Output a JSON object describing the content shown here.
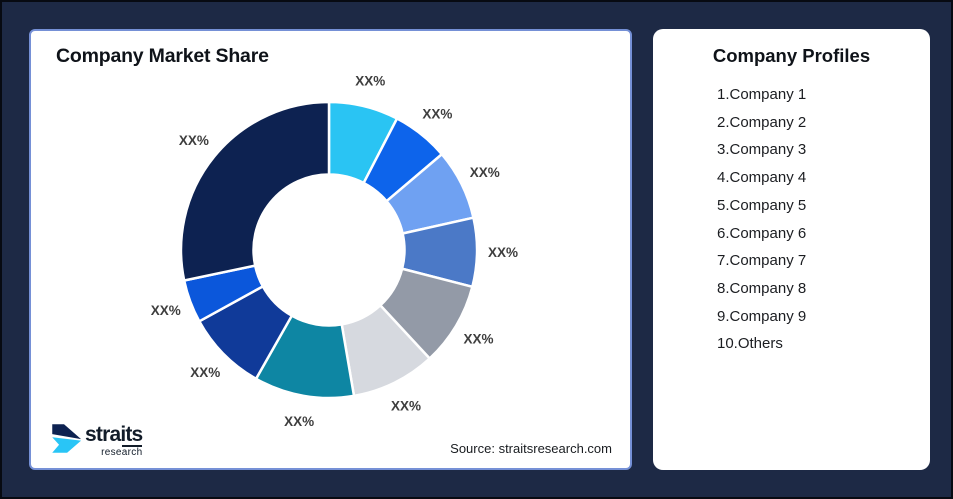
{
  "chart_card": {
    "title": "Company Market Share",
    "source": "Source: straitsresearch.com"
  },
  "logo": {
    "name": "straits",
    "subtitle": "research"
  },
  "profiles": {
    "title": "Company Profiles",
    "items": [
      "1.Company 1",
      "2.Company 2",
      "3.Company 3",
      "4.Company 4",
      "5.Company 5",
      "6.Company 6",
      "7.Company 7",
      "8.Company 8",
      "9.Company 9",
      "10.Others"
    ]
  },
  "chart_data": {
    "type": "pie",
    "donut": true,
    "title": "Company Market Share",
    "legend": "none",
    "start_angle_deg": 0,
    "direction": "clockwise",
    "inner_radius_ratio": 0.51,
    "note": "All slice data labels are masked as XX% in the source image; values below are visual estimates of arc sizes in percent.",
    "segments": [
      {
        "name": "Company 1",
        "label": "XX%",
        "value": 7.6,
        "color": "#2AC4F3"
      },
      {
        "name": "Company 2",
        "label": "XX%",
        "value": 6.2,
        "color": "#0D64EB"
      },
      {
        "name": "Company 3",
        "label": "XX%",
        "value": 7.7,
        "color": "#6FA1F2"
      },
      {
        "name": "Company 4",
        "label": "XX%",
        "value": 7.5,
        "color": "#4B79C7"
      },
      {
        "name": "Company 5",
        "label": "XX%",
        "value": 9.1,
        "color": "#939AA7"
      },
      {
        "name": "Company 6",
        "label": "XX%",
        "value": 9.2,
        "color": "#D6D9DF"
      },
      {
        "name": "Company 7",
        "label": "XX%",
        "value": 10.9,
        "color": "#0E86A3"
      },
      {
        "name": "Company 8",
        "label": "XX%",
        "value": 8.8,
        "color": "#103A99"
      },
      {
        "name": "Company 9",
        "label": "XX%",
        "value": 4.7,
        "color": "#0B57DB"
      },
      {
        "name": "Others",
        "label": "XX%",
        "value": 28.3,
        "color": "#0D2251"
      }
    ]
  },
  "colors": {
    "background": "#1D2945",
    "chart_card_border": "#7590D6",
    "slice_label_text": "#3E3E3E",
    "slice_divider": "#FFFFFF",
    "logo_navy": "#0D2251",
    "logo_cyan": "#29C5F6"
  }
}
